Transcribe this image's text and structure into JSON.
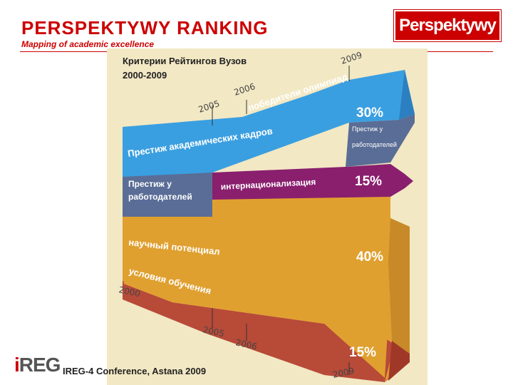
{
  "header": {
    "title": "PERSPEKTYWY RANKING",
    "subtitle": "Mapping of academic excellence",
    "logo": "Perspektywy",
    "accent_color": "#cc0000"
  },
  "diagram": {
    "heading_line1": "Критерии Рейтингов Вузов",
    "heading_line2": "2000-2009",
    "years": {
      "top_2009": "2009",
      "top_2005": "2005",
      "top_2006": "2006",
      "bottom_2000": "2000",
      "bottom_2005": "2005",
      "bottom_2006": "2006",
      "bottom_2009": "2009"
    },
    "bands": [
      {
        "label": "победители олимпиад",
        "color": "#3a9fe0"
      },
      {
        "label": "Престиж академических кадров",
        "color": "#3a9fe0"
      },
      {
        "label": "Престиж у работодателей",
        "color": "#5a6d96"
      },
      {
        "label": "интернационализация",
        "color": "#8a1f6e"
      },
      {
        "label": "научный потенциал",
        "color": "#e0a030"
      },
      {
        "label": "условия обучения",
        "color": "#b84a38"
      }
    ],
    "right_labels": {
      "employer_line1": "Престиж у",
      "employer_line2": "работодателей"
    },
    "percentages": {
      "top": "30%",
      "international": "15%",
      "science": "40%",
      "bottom": "15%"
    }
  },
  "footer": {
    "logo": "IREG",
    "text": "IREG-4 Conference, Astana 2009"
  }
}
